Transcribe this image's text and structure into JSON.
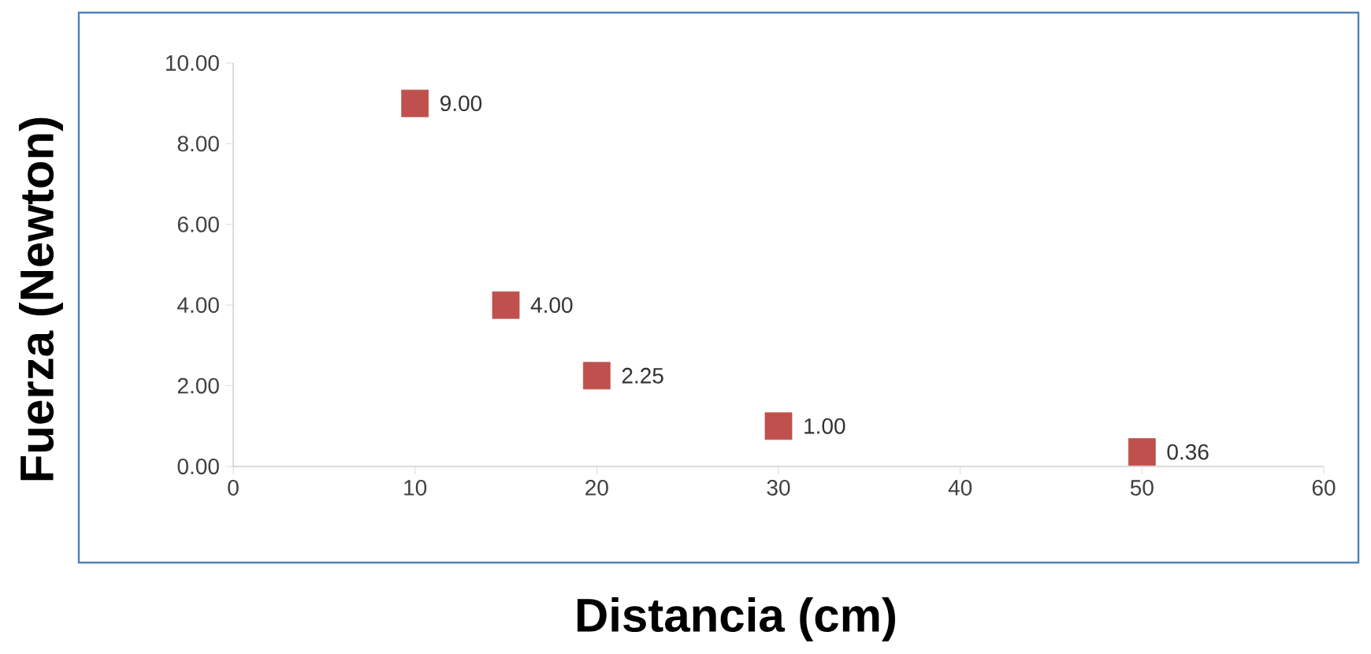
{
  "chart_data": {
    "type": "scatter",
    "xlabel": "Distancia (cm)",
    "ylabel": "Fuerza (Newton)",
    "x": [
      10,
      15,
      20,
      30,
      50
    ],
    "values": [
      9,
      4,
      2.25,
      1,
      0.36
    ],
    "value_labels": [
      "9.00",
      "4.00",
      "2.25",
      "1.00",
      "0.36"
    ],
    "color": "#c0504d",
    "marker": "square",
    "grid": false,
    "xlim": [
      0,
      60
    ],
    "xticks": [
      0,
      10,
      20,
      30,
      40,
      50,
      60
    ],
    "ylim": [
      0,
      10
    ],
    "yticks": [
      {
        "value": 0,
        "label": "0.00"
      },
      {
        "value": 2,
        "label": "2.00"
      },
      {
        "value": 4,
        "label": "4.00"
      },
      {
        "value": 6,
        "label": "6.00"
      },
      {
        "value": 8,
        "label": "8.00"
      },
      {
        "value": 10,
        "label": "10.00"
      }
    ]
  }
}
